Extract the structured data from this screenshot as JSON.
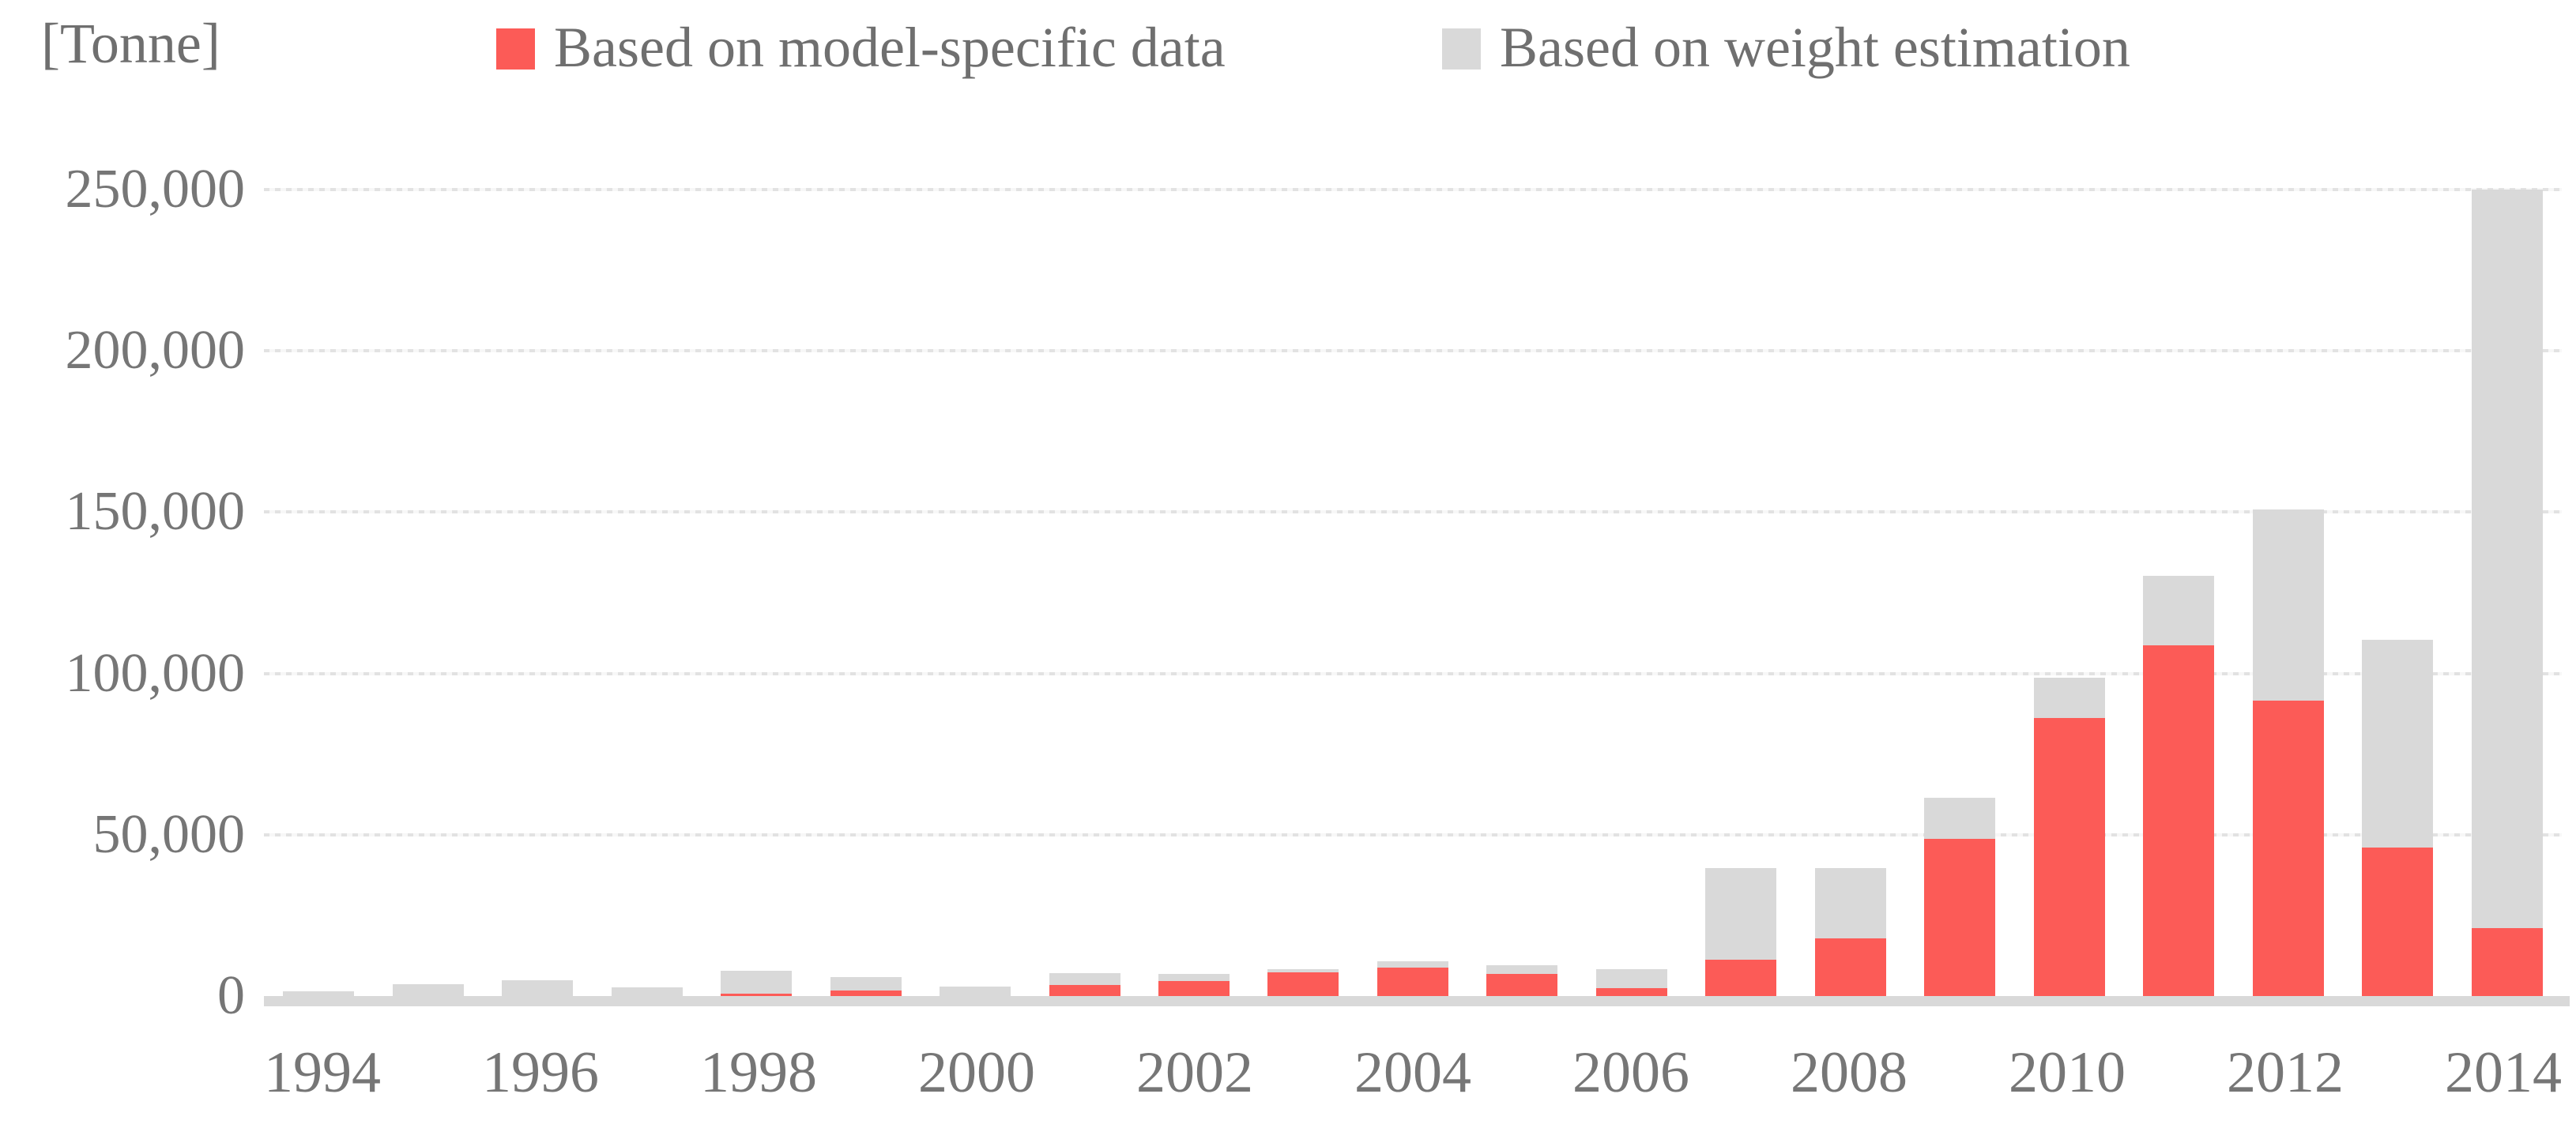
{
  "figure": {
    "unit_label": "[Tonne]",
    "background_color": "#ffffff",
    "text_color": "#6f6f6f",
    "axis_line_color": "#d9d9d9",
    "gridline_color": "#e2e2e2"
  },
  "legend": {
    "position": "top",
    "entries": [
      {
        "label": "Based on model-specific data",
        "color": "#fc5b57"
      },
      {
        "label": "Based on weight estimation",
        "color": "#d9d9d9"
      }
    ]
  },
  "chart_data": {
    "type": "bar",
    "stacked": true,
    "title": "",
    "xlabel": "",
    "ylabel": "[Tonne]",
    "ylim": [
      0,
      250000
    ],
    "grid": "horizontal-dashed",
    "legend_position": "top",
    "y_ticks": [
      {
        "value": 0,
        "label": "0"
      },
      {
        "value": 50000,
        "label": "50,000"
      },
      {
        "value": 100000,
        "label": "100,000"
      },
      {
        "value": 150000,
        "label": "150,000"
      },
      {
        "value": 200000,
        "label": "200,000"
      },
      {
        "value": 250000,
        "label": "250,000"
      }
    ],
    "categories": [
      1994,
      1995,
      1996,
      1997,
      1998,
      1999,
      2000,
      2001,
      2002,
      2003,
      2004,
      2005,
      2006,
      2007,
      2008,
      2009,
      2010,
      2011,
      2012,
      2013,
      2014
    ],
    "x_tick_labels_shown": [
      "1994",
      "1996",
      "1998",
      "2000",
      "2002",
      "2004",
      "2006",
      "2008",
      "2010",
      "2012",
      "2014"
    ],
    "series": [
      {
        "name": "Based on model-specific data",
        "color": "#fc5b57",
        "values": [
          0,
          0,
          0,
          0,
          700,
          1700,
          0,
          3400,
          4700,
          7300,
          8800,
          6900,
          2500,
          11300,
          17900,
          48700,
          86200,
          108700,
          91600,
          46000,
          21100
        ]
      },
      {
        "name": "Based on weight estimation",
        "color": "#d9d9d9",
        "values": [
          1500,
          3700,
          4900,
          2700,
          7100,
          4200,
          2900,
          3700,
          2200,
          1000,
          2000,
          2600,
          5800,
          28400,
          21800,
          12800,
          12500,
          21600,
          59200,
          64400,
          228900
        ]
      }
    ],
    "totals": [
      1500,
      3700,
      4900,
      2700,
      7800,
      5900,
      2900,
      7100,
      6900,
      8300,
      10800,
      9500,
      8300,
      39700,
      39700,
      61500,
      98700,
      130300,
      150800,
      110400,
      250000
    ]
  }
}
